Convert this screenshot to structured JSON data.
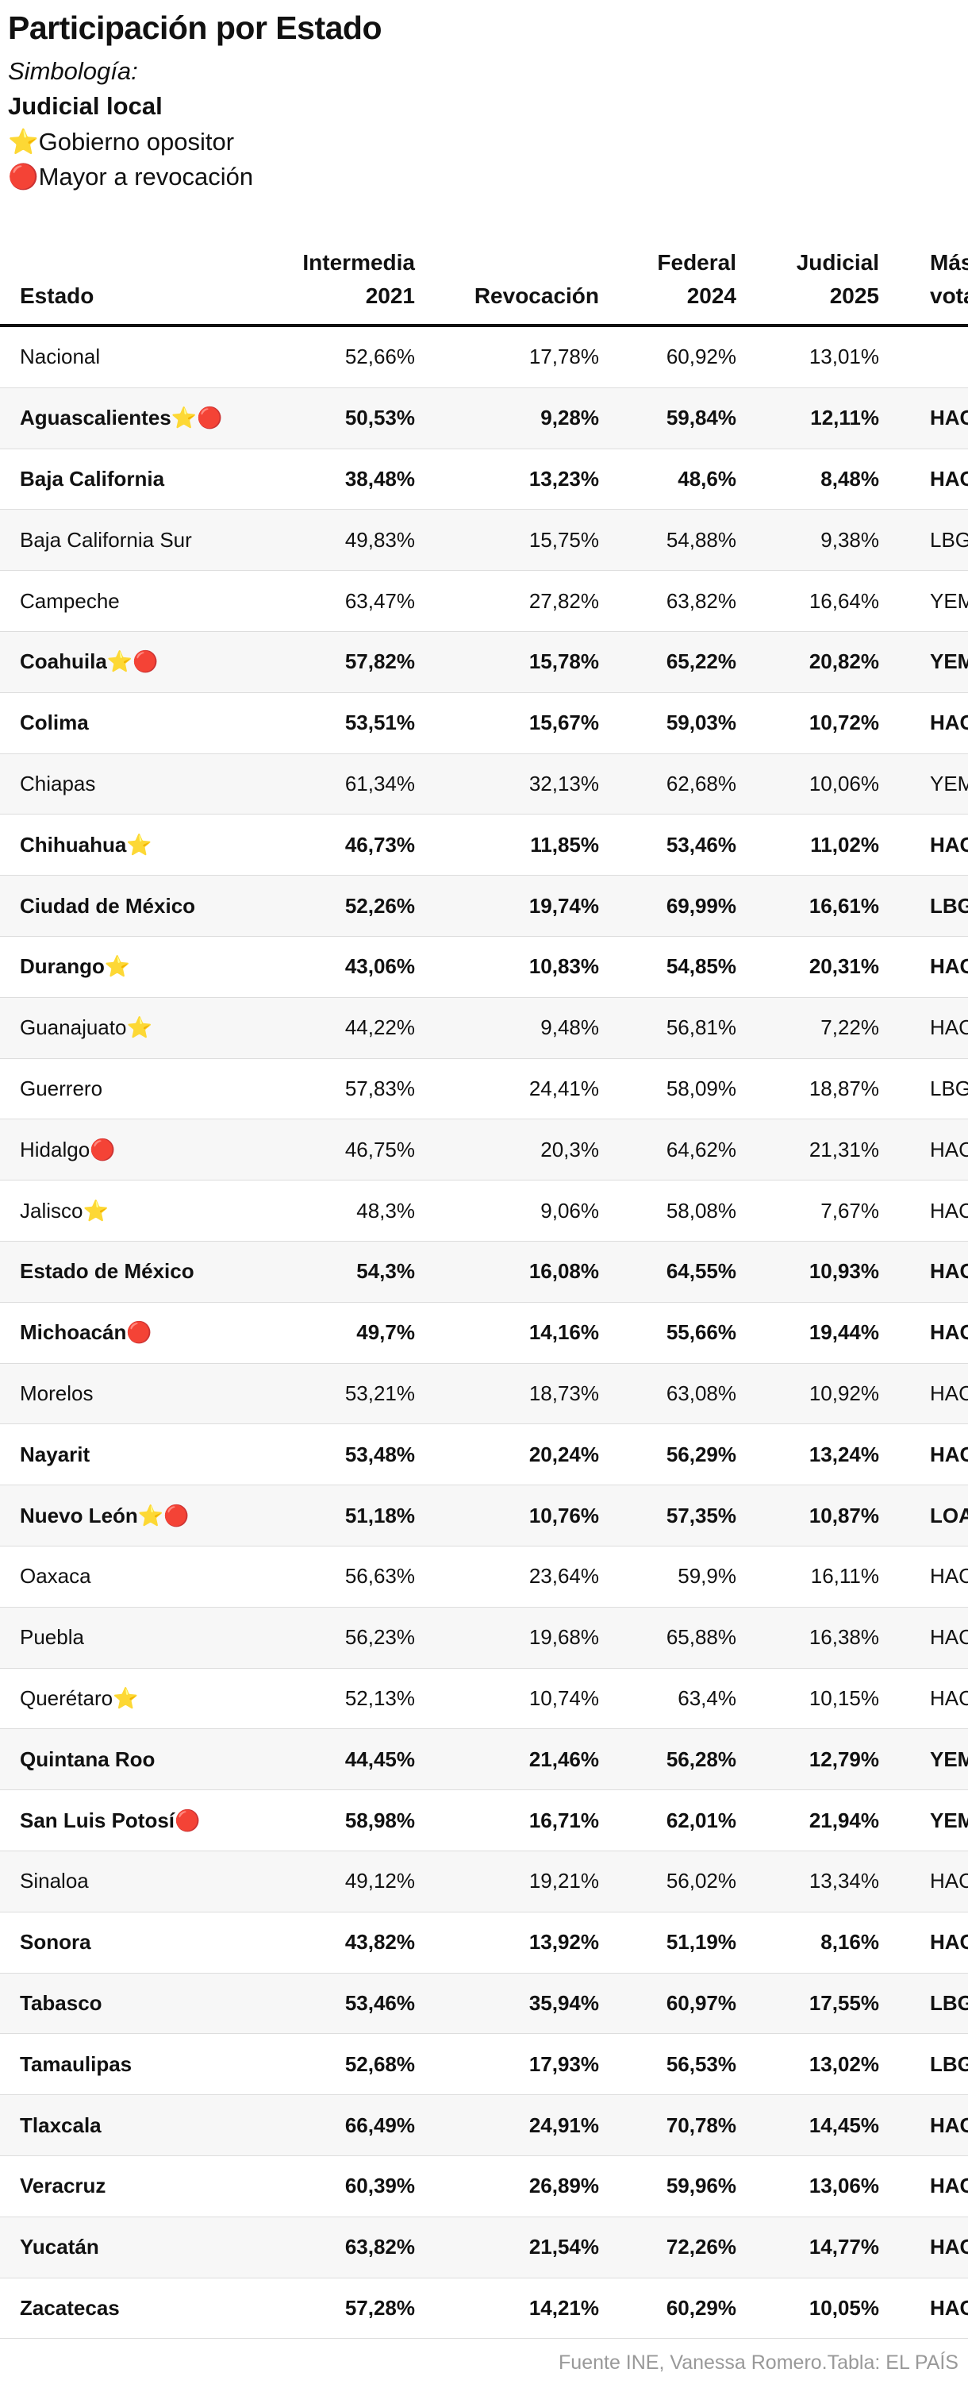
{
  "title": "Participación por Estado",
  "legend": {
    "subtitle": "Simbología:",
    "items": [
      "Judicial local",
      "⭐Gobierno opositor",
      "🔴Mayor a revocación"
    ]
  },
  "table": {
    "headers": [
      [
        "Estado"
      ],
      [
        "Intermedia",
        "2021"
      ],
      [
        "Revocación"
      ],
      [
        "Federal",
        "2024"
      ],
      [
        "Judicial",
        "2025"
      ],
      [
        "Más",
        "votado"
      ]
    ],
    "rows": [
      {
        "bold": false,
        "cells": [
          "Nacional",
          "52,66%",
          "17,78%",
          "60,92%",
          "13,01%",
          null
        ]
      },
      {
        "bold": true,
        "cells": [
          "Aguascalientes⭐🔴",
          "50,53%",
          "9,28%",
          "59,84%",
          "12,11%",
          "HAC"
        ]
      },
      {
        "bold": true,
        "cells": [
          "Baja California",
          "38,48%",
          "13,23%",
          "48,6%",
          "8,48%",
          "HAC"
        ]
      },
      {
        "bold": false,
        "cells": [
          "Baja California Sur",
          "49,83%",
          "15,75%",
          "54,88%",
          "9,38%",
          "LBG"
        ]
      },
      {
        "bold": false,
        "cells": [
          "Campeche",
          "63,47%",
          "27,82%",
          "63,82%",
          "16,64%",
          "YEM"
        ]
      },
      {
        "bold": true,
        "cells": [
          "Coahuila⭐🔴",
          "57,82%",
          "15,78%",
          "65,22%",
          "20,82%",
          "YEM"
        ]
      },
      {
        "bold": true,
        "cells": [
          "Colima",
          "53,51%",
          "15,67%",
          "59,03%",
          "10,72%",
          "HAC"
        ]
      },
      {
        "bold": false,
        "cells": [
          "Chiapas",
          "61,34%",
          "32,13%",
          "62,68%",
          "10,06%",
          "YEM"
        ]
      },
      {
        "bold": true,
        "cells": [
          "Chihuahua⭐",
          "46,73%",
          "11,85%",
          "53,46%",
          "11,02%",
          "HAC"
        ]
      },
      {
        "bold": true,
        "cells": [
          "Ciudad de México",
          "52,26%",
          "19,74%",
          "69,99%",
          "16,61%",
          "LBG"
        ]
      },
      {
        "bold": true,
        "cells": [
          "Durango⭐",
          "43,06%",
          "10,83%",
          "54,85%",
          "20,31%",
          "HAC"
        ]
      },
      {
        "bold": false,
        "cells": [
          "Guanajuato⭐",
          "44,22%",
          "9,48%",
          "56,81%",
          "7,22%",
          "HAC"
        ]
      },
      {
        "bold": false,
        "cells": [
          "Guerrero",
          "57,83%",
          "24,41%",
          "58,09%",
          "18,87%",
          "LBG"
        ]
      },
      {
        "bold": false,
        "cells": [
          "Hidalgo🔴",
          "46,75%",
          "20,3%",
          "64,62%",
          "21,31%",
          "HAC"
        ]
      },
      {
        "bold": false,
        "cells": [
          "Jalisco⭐",
          "48,3%",
          "9,06%",
          "58,08%",
          "7,67%",
          "HAC"
        ]
      },
      {
        "bold": true,
        "cells": [
          "Estado de México",
          "54,3%",
          "16,08%",
          "64,55%",
          "10,93%",
          "HAC"
        ]
      },
      {
        "bold": true,
        "cells": [
          "Michoacán🔴",
          "49,7%",
          "14,16%",
          "55,66%",
          "19,44%",
          "HAC"
        ]
      },
      {
        "bold": false,
        "cells": [
          "Morelos",
          "53,21%",
          "18,73%",
          "63,08%",
          "10,92%",
          "HAC"
        ]
      },
      {
        "bold": true,
        "cells": [
          "Nayarit",
          "53,48%",
          "20,24%",
          "56,29%",
          "13,24%",
          "HAC"
        ]
      },
      {
        "bold": true,
        "cells": [
          "Nuevo León⭐🔴",
          "51,18%",
          "10,76%",
          "57,35%",
          "10,87%",
          "LOA"
        ]
      },
      {
        "bold": false,
        "cells": [
          "Oaxaca",
          "56,63%",
          "23,64%",
          "59,9%",
          "16,11%",
          "HAC"
        ]
      },
      {
        "bold": false,
        "cells": [
          "Puebla",
          "56,23%",
          "19,68%",
          "65,88%",
          "16,38%",
          "HAC"
        ]
      },
      {
        "bold": false,
        "cells": [
          "Querétaro⭐",
          "52,13%",
          "10,74%",
          "63,4%",
          "10,15%",
          "HAC"
        ]
      },
      {
        "bold": true,
        "cells": [
          "Quintana Roo",
          "44,45%",
          "21,46%",
          "56,28%",
          "12,79%",
          "YEM"
        ]
      },
      {
        "bold": true,
        "cells": [
          "San Luis Potosí🔴",
          "58,98%",
          "16,71%",
          "62,01%",
          "21,94%",
          "YEM"
        ]
      },
      {
        "bold": false,
        "cells": [
          "Sinaloa",
          "49,12%",
          "19,21%",
          "56,02%",
          "13,34%",
          "HAC"
        ]
      },
      {
        "bold": true,
        "cells": [
          "Sonora",
          "43,82%",
          "13,92%",
          "51,19%",
          "8,16%",
          "HAC"
        ]
      },
      {
        "bold": true,
        "cells": [
          "Tabasco",
          "53,46%",
          "35,94%",
          "60,97%",
          "17,55%",
          "LBG"
        ]
      },
      {
        "bold": true,
        "cells": [
          "Tamaulipas",
          "52,68%",
          "17,93%",
          "56,53%",
          "13,02%",
          "LBG"
        ]
      },
      {
        "bold": true,
        "cells": [
          "Tlaxcala",
          "66,49%",
          "24,91%",
          "70,78%",
          "14,45%",
          "HAC"
        ]
      },
      {
        "bold": true,
        "cells": [
          "Veracruz",
          "60,39%",
          "26,89%",
          "59,96%",
          "13,06%",
          "HAC"
        ]
      },
      {
        "bold": true,
        "cells": [
          "Yucatán",
          "63,82%",
          "21,54%",
          "72,26%",
          "14,77%",
          "HAC"
        ]
      },
      {
        "bold": true,
        "cells": [
          "Zacatecas",
          "57,28%",
          "14,21%",
          "60,29%",
          "10,05%",
          "HAC"
        ]
      }
    ]
  },
  "footer": "Fuente INE, Vanessa Romero.Tabla: EL PAÍS"
}
